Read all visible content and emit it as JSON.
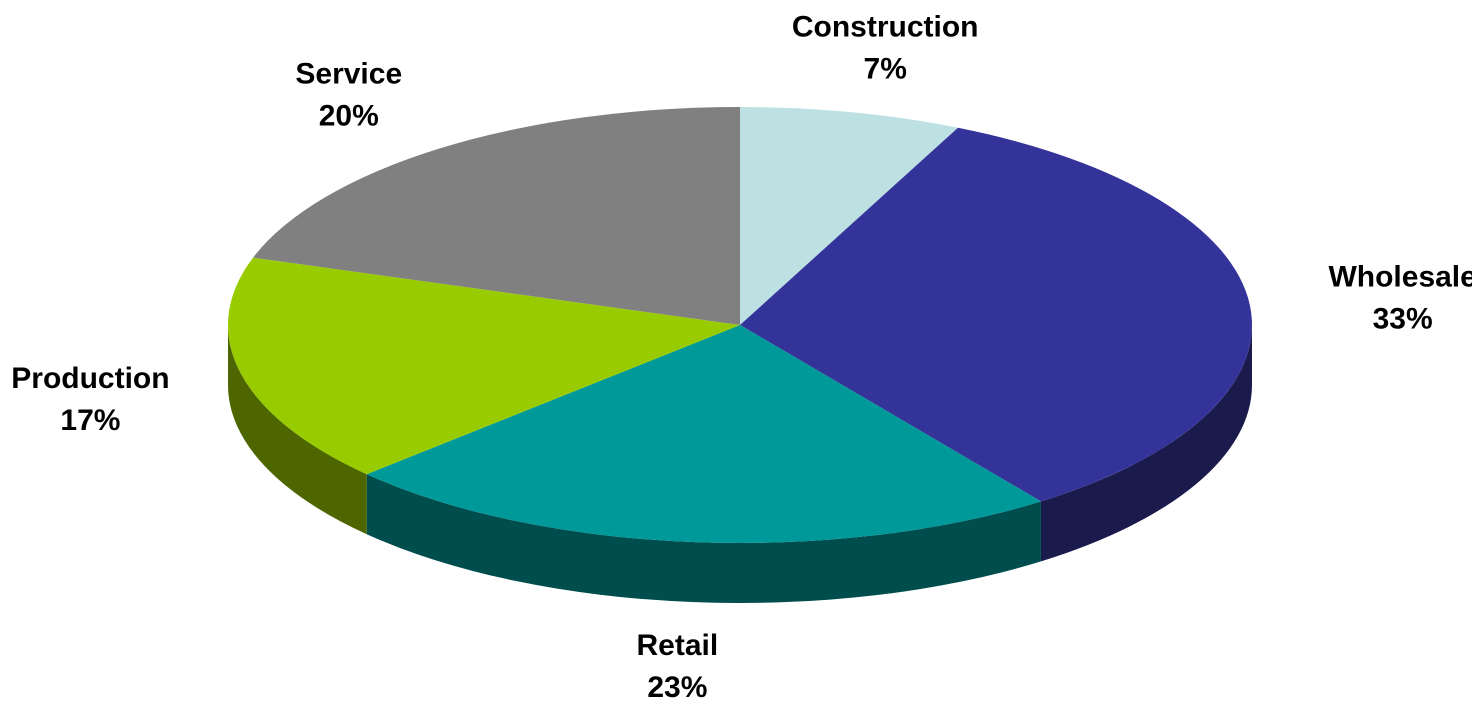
{
  "chart_data": {
    "type": "pie3d",
    "categories": [
      "Construction",
      "Wholesale",
      "Retail",
      "Production",
      "Service"
    ],
    "values": [
      7,
      33,
      23,
      17,
      20
    ],
    "value_labels": [
      "7%",
      "33%",
      "23%",
      "17%",
      "20%"
    ],
    "colors": [
      "#bde0e3",
      "#333399",
      "#009999",
      "#99cc00",
      "#808080"
    ]
  }
}
